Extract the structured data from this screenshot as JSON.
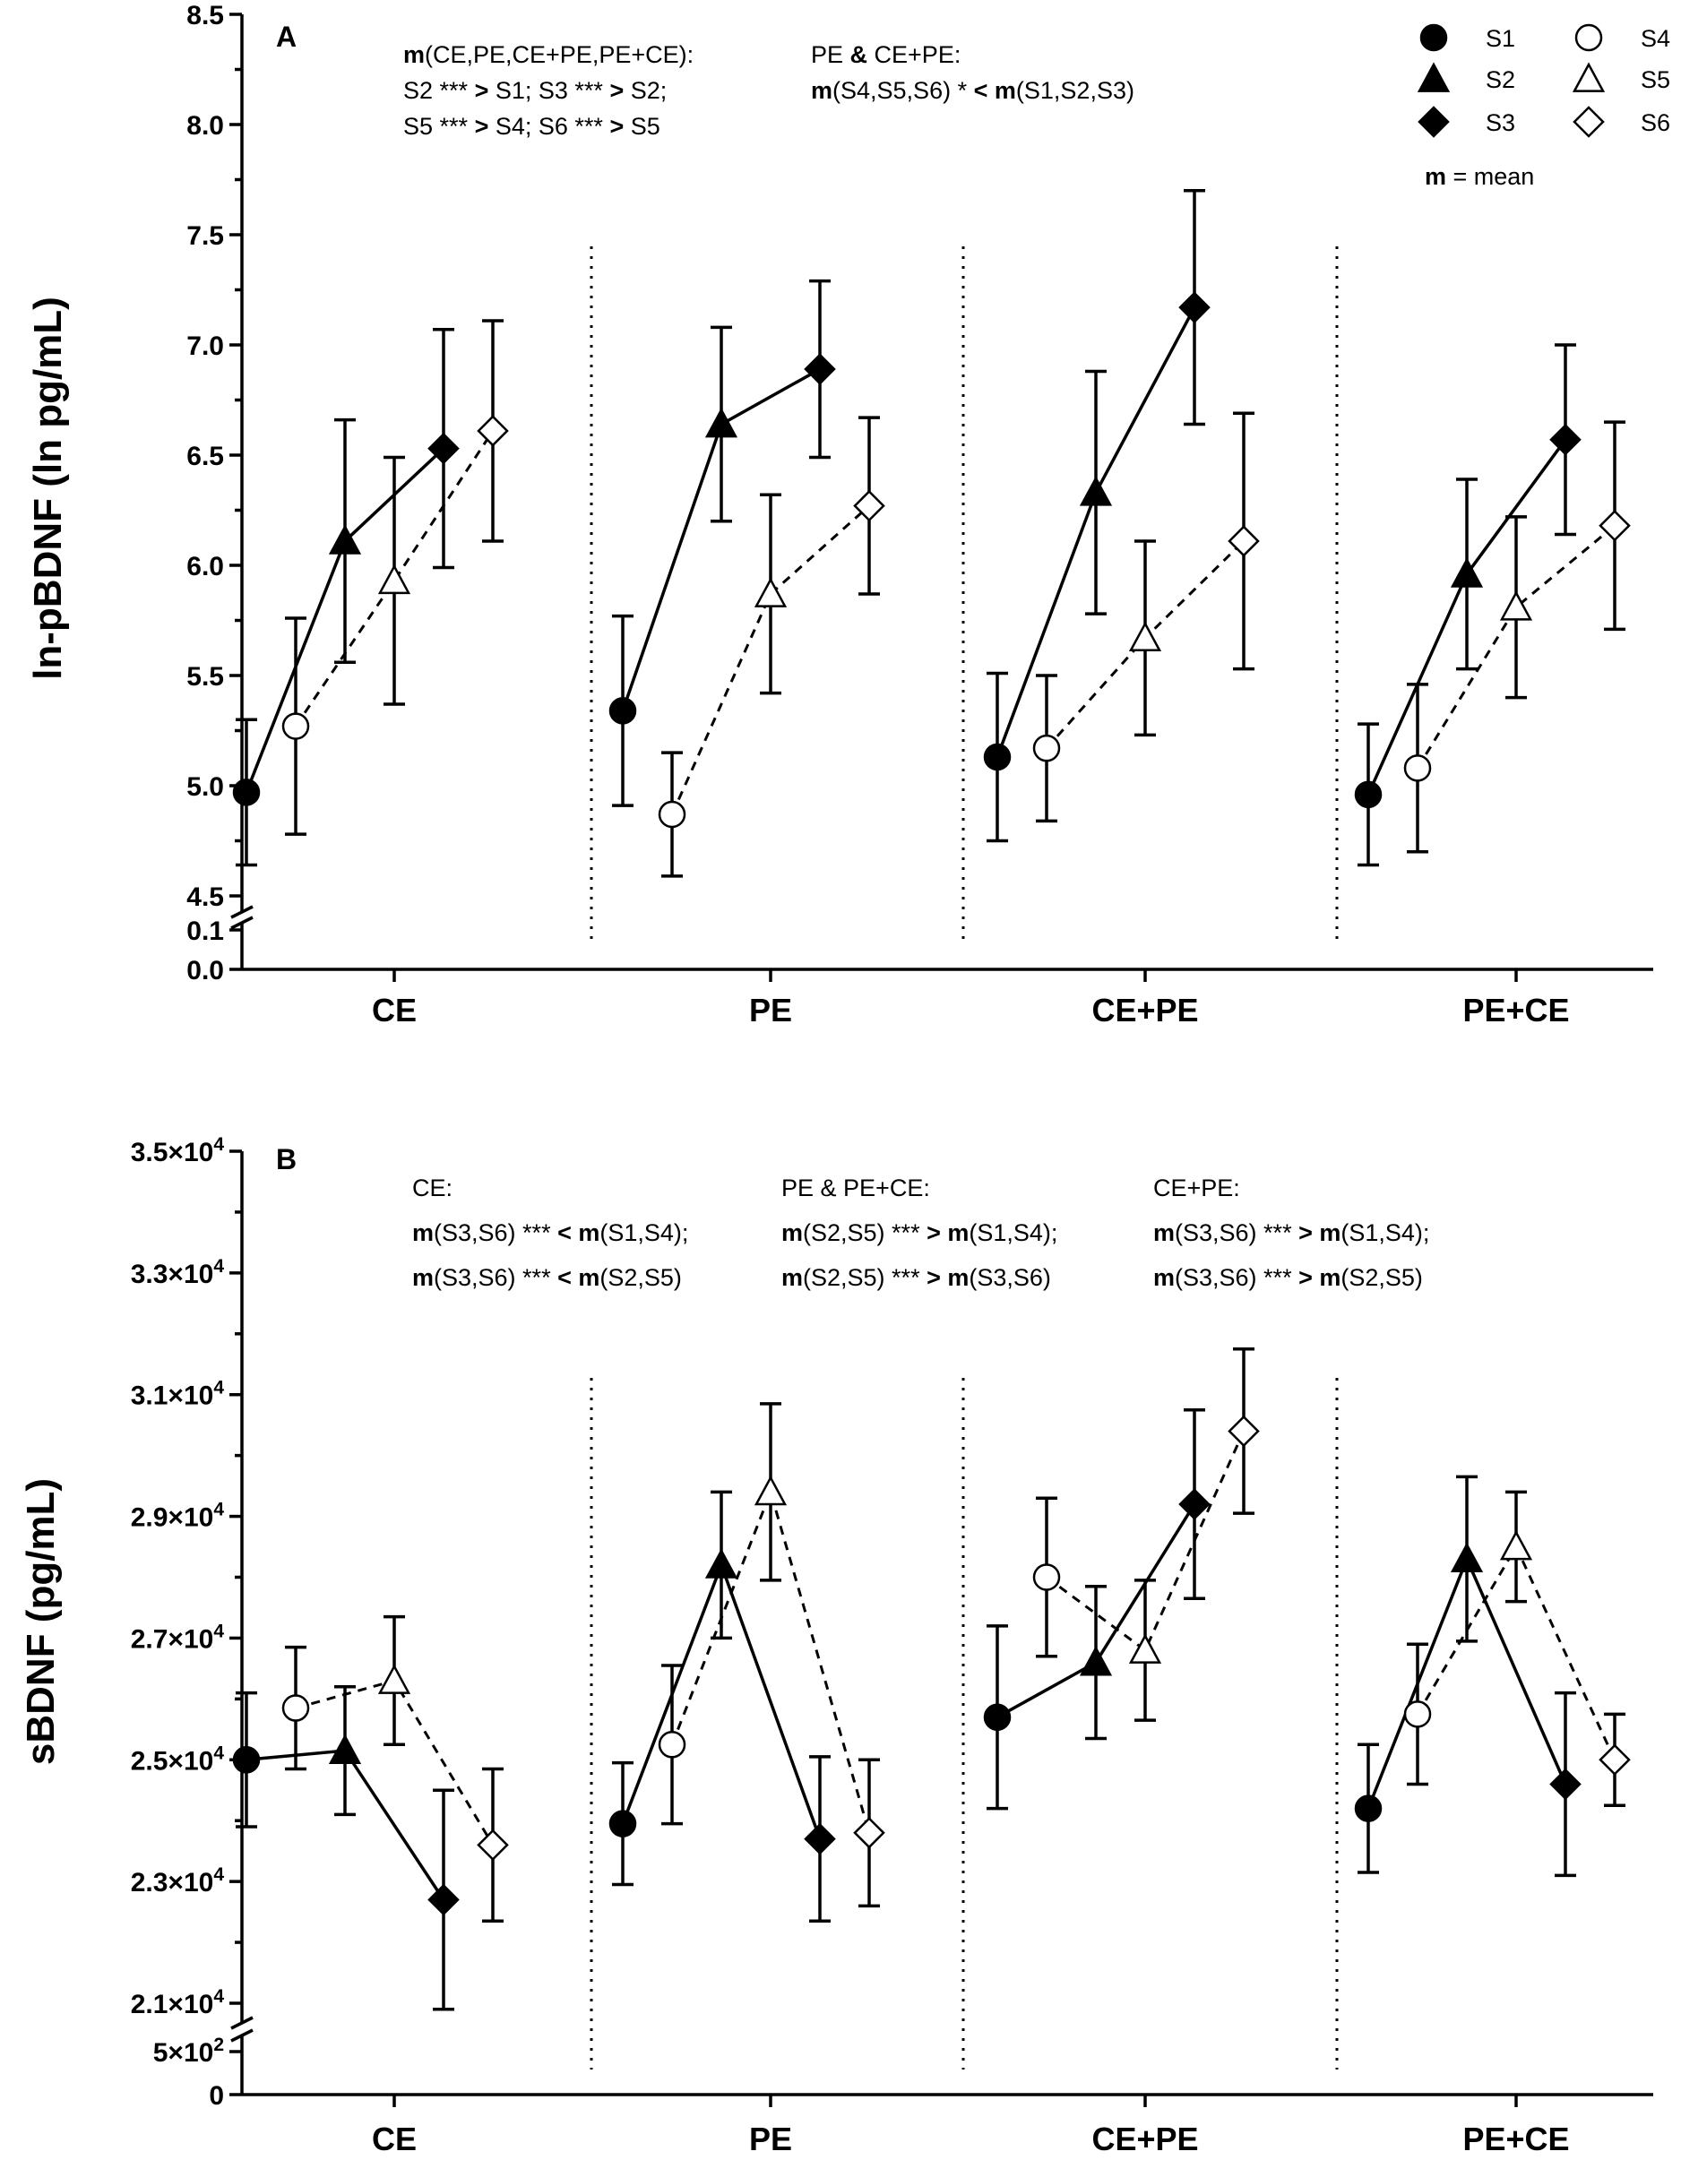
{
  "figure": {
    "legend": {
      "entries": [
        {
          "label": "S1",
          "marker": "circle",
          "filled": true
        },
        {
          "label": "S2",
          "marker": "triangle",
          "filled": true
        },
        {
          "label": "S3",
          "marker": "diamond",
          "filled": true
        },
        {
          "label": "S4",
          "marker": "circle",
          "filled": false
        },
        {
          "label": "S5",
          "marker": "triangle",
          "filled": false
        },
        {
          "label": "S6",
          "marker": "diamond",
          "filled": false
        }
      ],
      "mean_bold": "m",
      "mean_rest": " = mean"
    }
  },
  "chart_data": [
    {
      "type": "scatter",
      "panel": "A",
      "ylabel": "ln-pBDNF (ln pg/mL)",
      "ylim": [
        4.5,
        8.5
      ],
      "yticks": [
        "4.5",
        "5.0",
        "5.5",
        "6.0",
        "6.5",
        "7.0",
        "7.5",
        "8.0",
        "8.5"
      ],
      "ybreak_ticks": [
        "0.1",
        "0.0"
      ],
      "categories": [
        "CE",
        "PE",
        "CE+PE",
        "PE+CE"
      ],
      "series": [
        {
          "name": "S1",
          "marker": "circle",
          "filled": true,
          "values": [
            4.97,
            5.34,
            5.13,
            4.96
          ],
          "errors": [
            0.33,
            0.43,
            0.38,
            0.32
          ]
        },
        {
          "name": "S2",
          "marker": "triangle",
          "filled": true,
          "values": [
            6.11,
            6.64,
            6.33,
            5.96
          ],
          "errors": [
            0.55,
            0.44,
            0.55,
            0.43
          ]
        },
        {
          "name": "S3",
          "marker": "diamond",
          "filled": true,
          "values": [
            6.53,
            6.89,
            7.17,
            6.57
          ],
          "errors": [
            0.54,
            0.4,
            0.53,
            0.43
          ]
        },
        {
          "name": "S4",
          "marker": "circle",
          "filled": false,
          "values": [
            5.27,
            4.87,
            5.17,
            5.08
          ],
          "errors": [
            0.49,
            0.28,
            0.33,
            0.38
          ]
        },
        {
          "name": "S5",
          "marker": "triangle",
          "filled": false,
          "values": [
            5.93,
            5.87,
            5.67,
            5.81
          ],
          "errors": [
            0.56,
            0.45,
            0.44,
            0.41
          ]
        },
        {
          "name": "S6",
          "marker": "diamond",
          "filled": false,
          "values": [
            6.61,
            6.27,
            6.11,
            6.18
          ],
          "errors": [
            0.5,
            0.4,
            0.58,
            0.47
          ]
        }
      ],
      "annotations": [
        [
          [
            {
              "t": "m",
              "b": true
            },
            {
              "t": "(CE,PE,CE+PE,PE+CE):"
            }
          ],
          [
            {
              "t": "S2 *** "
            },
            {
              "t": ">",
              "b": true
            },
            {
              "t": " S1; S3 *** "
            },
            {
              "t": ">",
              "b": true
            },
            {
              "t": " S2;"
            }
          ],
          [
            {
              "t": "S5 *** "
            },
            {
              "t": ">",
              "b": true
            },
            {
              "t": " S4; S6 *** "
            },
            {
              "t": ">",
              "b": true
            },
            {
              "t": " S5"
            }
          ]
        ],
        [
          [
            {
              "t": "PE "
            },
            {
              "t": "&",
              "b": true
            },
            {
              "t": " CE+PE:"
            }
          ],
          [
            {
              "t": "m",
              "b": true
            },
            {
              "t": "(S4,S5,S6) * "
            },
            {
              "t": "<",
              "b": true
            },
            {
              "t": " "
            },
            {
              "t": "m",
              "b": true
            },
            {
              "t": "(S1,S2,S3)"
            }
          ]
        ]
      ]
    },
    {
      "type": "scatter",
      "panel": "B",
      "ylabel": "sBDNF (pg/mL)",
      "ylim": [
        21000,
        35000
      ],
      "yticks": [
        "2.1×10⁴",
        "2.3×10⁴",
        "2.5×10⁴",
        "2.7×10⁴",
        "2.9×10⁴",
        "3.1×10⁴",
        "3.3×10⁴",
        "3.5×10⁴"
      ],
      "ybreak_ticks": [
        "5×10²",
        "0"
      ],
      "categories": [
        "CE",
        "PE",
        "CE+PE",
        "PE+CE"
      ],
      "series": [
        {
          "name": "S1",
          "marker": "circle",
          "filled": true,
          "values": [
            25000,
            23950,
            25700,
            24200
          ],
          "errors": [
            1100,
            1000,
            1500,
            1050
          ]
        },
        {
          "name": "S2",
          "marker": "triangle",
          "filled": true,
          "values": [
            25150,
            28200,
            26600,
            28300
          ],
          "errors": [
            1050,
            1200,
            1250,
            1350
          ]
        },
        {
          "name": "S3",
          "marker": "diamond",
          "filled": true,
          "values": [
            22700,
            23700,
            29200,
            24600
          ],
          "errors": [
            1800,
            1350,
            1550,
            1500
          ]
        },
        {
          "name": "S4",
          "marker": "circle",
          "filled": false,
          "values": [
            25850,
            25250,
            28000,
            25750
          ],
          "errors": [
            1000,
            1300,
            1300,
            1150
          ]
        },
        {
          "name": "S5",
          "marker": "triangle",
          "filled": false,
          "values": [
            26300,
            29400,
            26800,
            28500
          ],
          "errors": [
            1050,
            1450,
            1150,
            900
          ]
        },
        {
          "name": "S6",
          "marker": "diamond",
          "filled": false,
          "values": [
            23600,
            23800,
            30400,
            25000
          ],
          "errors": [
            1250,
            1200,
            1350,
            750
          ]
        }
      ],
      "annotations": [
        [
          [
            {
              "t": "CE:"
            }
          ],
          [
            {
              "t": "m",
              "b": true
            },
            {
              "t": "(S3,S6) *** "
            },
            {
              "t": "<",
              "b": true
            },
            {
              "t": " "
            },
            {
              "t": "m",
              "b": true
            },
            {
              "t": "(S1,S4);"
            }
          ],
          [
            {
              "t": "m",
              "b": true
            },
            {
              "t": "(S3,S6) *** "
            },
            {
              "t": "<",
              "b": true
            },
            {
              "t": " "
            },
            {
              "t": "m",
              "b": true
            },
            {
              "t": "(S2,S5)"
            }
          ]
        ],
        [
          [
            {
              "t": "PE & PE+CE:"
            }
          ],
          [
            {
              "t": "m",
              "b": true
            },
            {
              "t": "(S2,S5) *** "
            },
            {
              "t": ">",
              "b": true
            },
            {
              "t": " "
            },
            {
              "t": "m",
              "b": true
            },
            {
              "t": "(S1,S4);"
            }
          ],
          [
            {
              "t": "m",
              "b": true
            },
            {
              "t": "(S2,S5) *** "
            },
            {
              "t": ">",
              "b": true
            },
            {
              "t": " "
            },
            {
              "t": "m",
              "b": true
            },
            {
              "t": "(S3,S6)"
            }
          ]
        ],
        [
          [
            {
              "t": "CE+PE:"
            }
          ],
          [
            {
              "t": "m",
              "b": true
            },
            {
              "t": "(S3,S6) *** "
            },
            {
              "t": ">",
              "b": true
            },
            {
              "t": " "
            },
            {
              "t": "m",
              "b": true
            },
            {
              "t": "(S1,S4);"
            }
          ],
          [
            {
              "t": "m",
              "b": true
            },
            {
              "t": "(S3,S6) *** "
            },
            {
              "t": ">",
              "b": true
            },
            {
              "t": " "
            },
            {
              "t": "m",
              "b": true
            },
            {
              "t": "(S2,S5)"
            }
          ]
        ]
      ]
    }
  ]
}
